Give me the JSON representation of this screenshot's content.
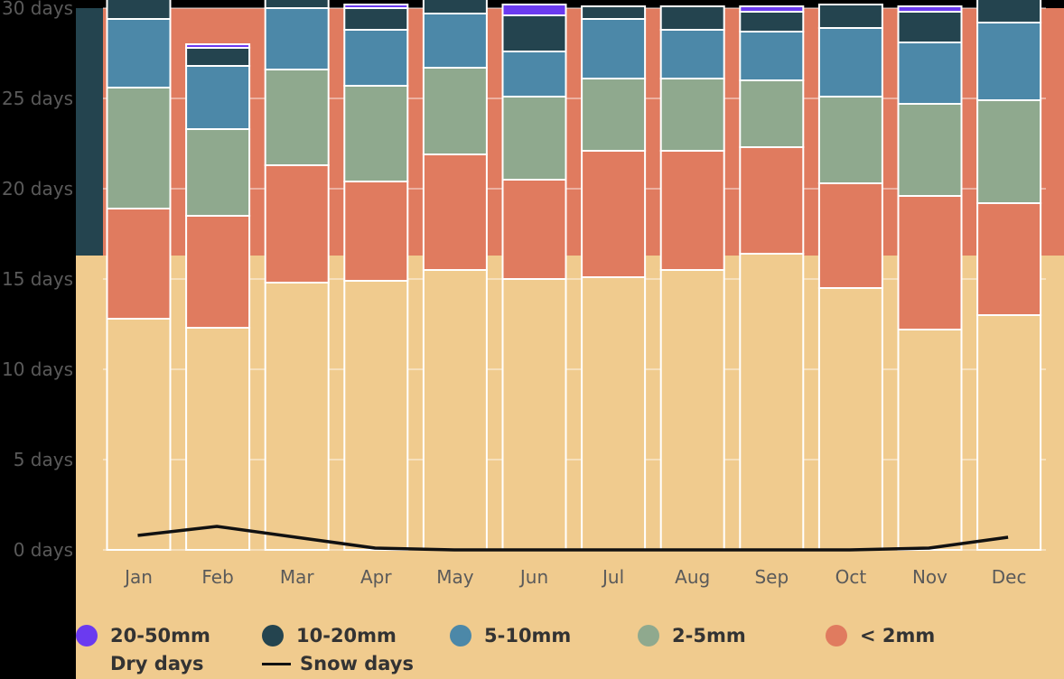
{
  "chart_data": {
    "type": "bar",
    "stacked": true,
    "categories": [
      "Jan",
      "Feb",
      "Mar",
      "Apr",
      "May",
      "Jun",
      "Jul",
      "Aug",
      "Sep",
      "Oct",
      "Nov",
      "Dec"
    ],
    "series": [
      {
        "name": "Dry days",
        "color": "#f0cb8e",
        "values": [
          12.8,
          12.3,
          14.8,
          14.9,
          15.5,
          15.0,
          15.1,
          15.5,
          16.4,
          14.5,
          12.2,
          13.0
        ]
      },
      {
        "name": "< 2mm",
        "color": "#e07b5f",
        "values": [
          6.1,
          6.2,
          6.5,
          5.5,
          6.4,
          5.5,
          7.0,
          6.6,
          5.9,
          5.8,
          7.4,
          6.2
        ]
      },
      {
        "name": "2-5mm",
        "color": "#8fa98e",
        "values": [
          6.7,
          4.8,
          5.3,
          5.3,
          4.8,
          4.6,
          4.0,
          4.0,
          3.7,
          4.8,
          5.1,
          5.7
        ]
      },
      {
        "name": "5-10mm",
        "color": "#4c88a8",
        "values": [
          3.8,
          3.5,
          3.4,
          3.1,
          3.0,
          2.5,
          3.3,
          2.7,
          2.7,
          3.8,
          3.4,
          4.3
        ]
      },
      {
        "name": "10-20mm",
        "color": "#24444f",
        "values": [
          1.4,
          1.0,
          1.8,
          1.2,
          0.8,
          2.0,
          0.7,
          1.3,
          1.1,
          1.3,
          1.7,
          1.3
        ]
      },
      {
        "name": "20-50mm",
        "color": "#6b3af0",
        "values": [
          0,
          0.2,
          0,
          0.2,
          0,
          0.6,
          0,
          0,
          0.3,
          0,
          0.3,
          0
        ]
      }
    ],
    "snow_days": {
      "name": "Snow days",
      "color": "#111111",
      "values": [
        0.8,
        1.3,
        0.7,
        0.1,
        0,
        0,
        0,
        0,
        0,
        0,
        0.1,
        0.7
      ]
    },
    "ylim": [
      0,
      30
    ],
    "y_ticks": [
      0,
      5,
      10,
      15,
      20,
      25,
      30
    ],
    "y_tick_labels": [
      "0 days",
      "5 days",
      "10 days",
      "15 days",
      "20 days",
      "25 days",
      "30 days"
    ],
    "grid": true,
    "legend_position": "bottom"
  },
  "legend": {
    "items": [
      {
        "label": "20-50mm",
        "color": "#6b3af0",
        "kind": "dot"
      },
      {
        "label": "10-20mm",
        "color": "#24444f",
        "kind": "dot"
      },
      {
        "label": "5-10mm",
        "color": "#4c88a8",
        "kind": "dot"
      },
      {
        "label": "2-5mm",
        "color": "#8fa98e",
        "kind": "dot"
      },
      {
        "label": "< 2mm",
        "color": "#e07b5f",
        "kind": "dot"
      },
      {
        "label": "Dry days",
        "color": "#f0cb8e",
        "kind": "none"
      },
      {
        "label": "Snow days",
        "color": "#111111",
        "kind": "line"
      }
    ]
  },
  "colors": {
    "frame": "#000000",
    "panel_sand": "#f0cb8e",
    "panel_coral": "#e07b5f",
    "panel_dark": "#24444f",
    "tick_text": "#5a5a5a",
    "bar_border": "#ffffff"
  }
}
